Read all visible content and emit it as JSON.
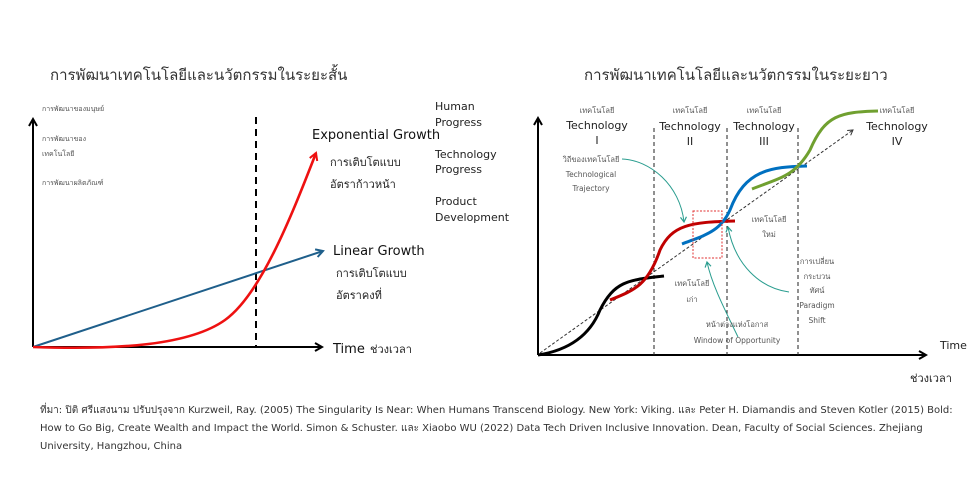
{
  "colors": {
    "exponential": "#ee1111",
    "linear": "#1f5f8b",
    "tech1": "#000000",
    "tech2": "#c00000",
    "tech3": "#0070c0",
    "tech4": "#70a030",
    "annotation": "#2a9d8f",
    "window": "#e03030"
  },
  "short_term": {
    "title": "การพัฒนาเทคโนโลยีและนวัตกรรมในระยะสั้น",
    "y_labels": [
      "การพัฒนาของมนุษย์",
      "การพัฒนาของ",
      "เทคโนโลยี",
      "การพัฒนาผลิตภัณฑ์"
    ],
    "right_labels": [
      "Human",
      "Progress",
      "Technology",
      "Progress",
      "Product",
      "Development"
    ],
    "exponential": {
      "label": "Exponential Growth",
      "thai_1": "การเติบโตแบบ",
      "thai_2": "อัตราก้าวหน้า"
    },
    "linear": {
      "label": "Linear Growth",
      "thai_1": "การเติบโตแบบ",
      "thai_2": "อัตราคงที่"
    },
    "x_label": "Time",
    "x_label_thai": "ช่วงเวลา"
  },
  "long_term": {
    "title": "การพัฒนาเทคโนโลยีและนวัตกรรมในระยะยาว",
    "technologies": [
      {
        "thai": "เทคโนโลยี",
        "name": "Technology",
        "num": "I"
      },
      {
        "thai": "เทคโนโลยี",
        "name": "Technology",
        "num": "II"
      },
      {
        "thai": "เทคโนโลยี",
        "name": "Technology",
        "num": "III"
      },
      {
        "thai": "เทคโนโลยี",
        "name": "Technology",
        "num": "IV"
      }
    ],
    "trajectory": {
      "thai": "วิถีของเทคโนโลยี",
      "en_1": "Technological",
      "en_2": "Trajectory"
    },
    "new_tech": {
      "line1": "เทคโนโลยี",
      "line2": "ใหม่"
    },
    "old_tech": {
      "line1": "เทคโนโลยี",
      "line2": "เก่า"
    },
    "paradigm": {
      "thai_1": "การเปลี่ยน",
      "thai_2": "กระบวน",
      "thai_3": "ทัศน์",
      "en_1": "Paradigm",
      "en_2": "Shift"
    },
    "window": {
      "thai": "หน้าต่างแห่งโอกาส",
      "en": "Window of Opportunity"
    },
    "x_label": "Time",
    "x_label_thai": "ช่วงเวลา"
  },
  "footer": {
    "lines": [
      "ที่มา: ปิติ ศรีแสงนาม ปรับปรุงจาก Kurzweil, Ray. (2005) The Singularity Is Near: When Humans Transcend Biology. New York: Viking. และ Peter H. Diamandis and Steven Kotler (2015) Bold:",
      "How to Go Big, Create Wealth and Impact the World. Simon & Schuster. และ Xiaobo WU (2022) Data Tech Driven Inclusive Innovation. Dean, Faculty of Social Sciences. Zhejiang",
      "University, Hangzhou, China"
    ]
  }
}
